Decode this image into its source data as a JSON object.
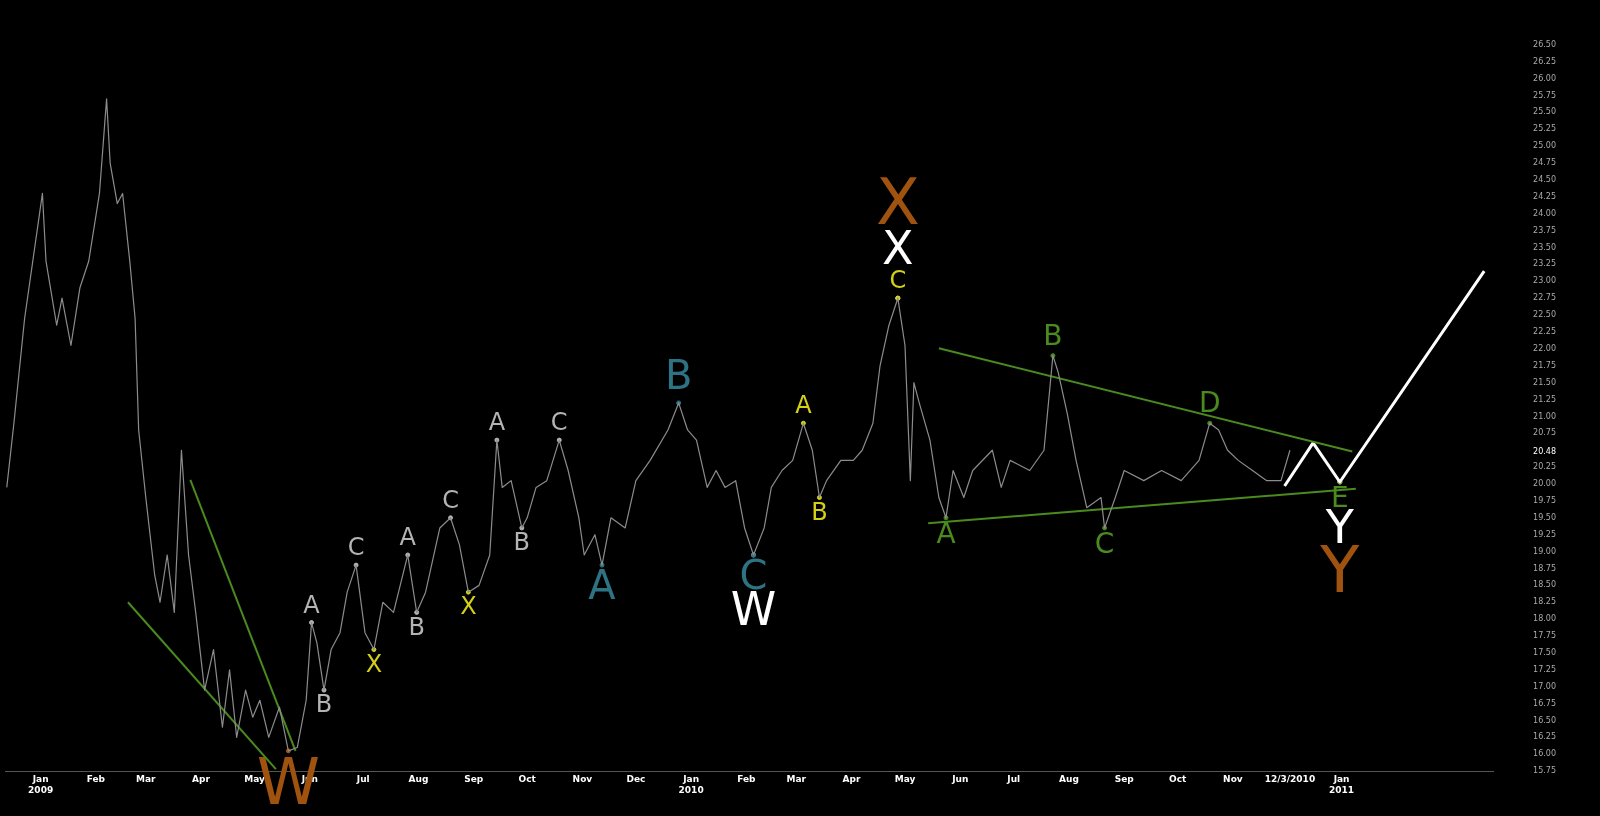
{
  "chart_data": {
    "type": "line",
    "grid": false,
    "legend": false,
    "xlim": [
      "2008-12-12",
      "2011-03-27"
    ],
    "ylim": [
      15.75,
      26.5
    ],
    "xticks": [
      {
        "value": "2009-01",
        "label": "Jan 2009"
      },
      {
        "value": "2009-02",
        "label": "Feb"
      },
      {
        "value": "2009-03",
        "label": "Mar"
      },
      {
        "value": "2009-04",
        "label": "Apr"
      },
      {
        "value": "2009-05",
        "label": "May"
      },
      {
        "value": "2009-06",
        "label": "Jun"
      },
      {
        "value": "2009-07",
        "label": "Jul"
      },
      {
        "value": "2009-08",
        "label": "Aug"
      },
      {
        "value": "2009-09",
        "label": "Sep"
      },
      {
        "value": "2009-10",
        "label": "Oct"
      },
      {
        "value": "2009-11",
        "label": "Nov"
      },
      {
        "value": "2009-12",
        "label": "Dec"
      },
      {
        "value": "2010-01",
        "label": "Jan 2010"
      },
      {
        "value": "2010-02",
        "label": "Feb"
      },
      {
        "value": "2010-03",
        "label": "Mar"
      },
      {
        "value": "2010-04",
        "label": "Apr"
      },
      {
        "value": "2010-05",
        "label": "May"
      },
      {
        "value": "2010-06",
        "label": "Jun"
      },
      {
        "value": "2010-07",
        "label": "Jul"
      },
      {
        "value": "2010-08",
        "label": "Aug"
      },
      {
        "value": "2010-09",
        "label": "Sep"
      },
      {
        "value": "2010-10",
        "label": "Oct"
      },
      {
        "value": "2010-11",
        "label": "Nov"
      },
      {
        "value": "2010-12-03",
        "label": "12/3/2010"
      },
      {
        "value": "2011-01",
        "label": "Jan 2011"
      }
    ],
    "yticks": [
      {
        "value": 15.75,
        "label": "15.75"
      },
      {
        "value": 16,
        "label": "16.00"
      },
      {
        "value": 16.25,
        "label": "16.25"
      },
      {
        "value": 16.5,
        "label": "16.50"
      },
      {
        "value": 16.75,
        "label": "16.75"
      },
      {
        "value": 17,
        "label": "17.00"
      },
      {
        "value": 17.25,
        "label": "17.25"
      },
      {
        "value": 17.5,
        "label": "17.50"
      },
      {
        "value": 17.75,
        "label": "17.75"
      },
      {
        "value": 18,
        "label": "18.00"
      },
      {
        "value": 18.25,
        "label": "18.25"
      },
      {
        "value": 18.5,
        "label": "18.50"
      },
      {
        "value": 18.75,
        "label": "18.75"
      },
      {
        "value": 19,
        "label": "19.00"
      },
      {
        "value": 19.25,
        "label": "19.25"
      },
      {
        "value": 19.5,
        "label": "19.50"
      },
      {
        "value": 19.75,
        "label": "19.75"
      },
      {
        "value": 20,
        "label": "20.00"
      },
      {
        "value": 20.25,
        "label": "20.25"
      },
      {
        "value": 20.48,
        "label": "20.48"
      },
      {
        "value": 20.75,
        "label": "20.75"
      },
      {
        "value": 21,
        "label": "21.00"
      },
      {
        "value": 21.25,
        "label": "21.25"
      },
      {
        "value": 21.5,
        "label": "21.50"
      },
      {
        "value": 21.75,
        "label": "21.75"
      },
      {
        "value": 22,
        "label": "22.00"
      },
      {
        "value": 22.25,
        "label": "22.25"
      },
      {
        "value": 22.5,
        "label": "22.50"
      },
      {
        "value": 22.75,
        "label": "22.75"
      },
      {
        "value": 23,
        "label": "23.00"
      },
      {
        "value": 23.25,
        "label": "23.25"
      },
      {
        "value": 23.5,
        "label": "23.50"
      },
      {
        "value": 23.75,
        "label": "23.75"
      },
      {
        "value": 24,
        "label": "24.00"
      },
      {
        "value": 24.25,
        "label": "24.25"
      },
      {
        "value": 24.5,
        "label": "24.50"
      },
      {
        "value": 24.75,
        "label": "24.75"
      },
      {
        "value": 25,
        "label": "25.00"
      },
      {
        "value": 25.25,
        "label": "25.25"
      },
      {
        "value": 25.5,
        "label": "25.50"
      },
      {
        "value": 25.75,
        "label": "25.75"
      },
      {
        "value": 26,
        "label": "26.00"
      },
      {
        "value": 26.25,
        "label": "26.25"
      },
      {
        "value": 26.5,
        "label": "26.50"
      }
    ],
    "series": [
      {
        "color": "#8c8c8c",
        "x": [
          "2008-12-13",
          "2008-12-17",
          "2008-12-23",
          "2009-01-02",
          "2009-01-04",
          "2009-01-10",
          "2009-01-13",
          "2009-01-18",
          "2009-01-23",
          "2009-01-28",
          "2009-02-03",
          "2009-02-07",
          "2009-02-09",
          "2009-02-13",
          "2009-02-16",
          "2009-02-20",
          "2009-02-23",
          "2009-02-25",
          "2009-03-01",
          "2009-03-06",
          "2009-03-09",
          "2009-03-13",
          "2009-03-17",
          "2009-03-21",
          "2009-03-25",
          "2009-03-29",
          "2009-04-03",
          "2009-04-08",
          "2009-04-13",
          "2009-04-17",
          "2009-04-21",
          "2009-04-26",
          "2009-04-30",
          "2009-05-04",
          "2009-05-09",
          "2009-05-15",
          "2009-05-20",
          "2009-05-25",
          "2009-05-30",
          "2009-06-02",
          "2009-06-05",
          "2009-06-09",
          "2009-06-13",
          "2009-06-18",
          "2009-06-22",
          "2009-06-27",
          "2009-07-02",
          "2009-07-07",
          "2009-07-12",
          "2009-07-18",
          "2009-07-26",
          "2009-07-31",
          "2009-08-05",
          "2009-08-13",
          "2009-08-19",
          "2009-08-24",
          "2009-08-29",
          "2009-09-04",
          "2009-09-10",
          "2009-09-14",
          "2009-09-17",
          "2009-09-22",
          "2009-09-28",
          "2009-10-01",
          "2009-10-06",
          "2009-10-12",
          "2009-10-19",
          "2009-10-24",
          "2009-10-30",
          "2009-11-02",
          "2009-11-08",
          "2009-11-12",
          "2009-11-17",
          "2009-11-25",
          "2009-12-01",
          "2009-12-09",
          "2009-12-19",
          "2009-12-25",
          "2009-12-30",
          "2010-01-04",
          "2010-01-10",
          "2010-01-15",
          "2010-01-20",
          "2010-01-26",
          "2010-01-31",
          "2010-02-05",
          "2010-02-11",
          "2010-02-15",
          "2010-02-21",
          "2010-02-27",
          "2010-03-05",
          "2010-03-10",
          "2010-03-14",
          "2010-03-18",
          "2010-03-26",
          "2010-04-02",
          "2010-04-07",
          "2010-04-13",
          "2010-04-17",
          "2010-04-22",
          "2010-04-27",
          "2010-05-01",
          "2010-05-04",
          "2010-05-06",
          "2010-05-09",
          "2010-05-15",
          "2010-05-20",
          "2010-05-24",
          "2010-05-28",
          "2010-06-03",
          "2010-06-08",
          "2010-06-19",
          "2010-06-24",
          "2010-06-29",
          "2010-07-10",
          "2010-07-18",
          "2010-07-23",
          "2010-07-26",
          "2010-07-31",
          "2010-08-05",
          "2010-08-11",
          "2010-08-19",
          "2010-08-21",
          "2010-08-27",
          "2010-09-01",
          "2010-09-12",
          "2010-09-22",
          "2010-10-03",
          "2010-10-13",
          "2010-10-19",
          "2010-10-24",
          "2010-10-29",
          "2010-11-04",
          "2010-11-12",
          "2010-11-20",
          "2010-11-28",
          "2010-12-03"
        ],
        "values": [
          19.95,
          20.9,
          22.45,
          24.3,
          23.3,
          22.35,
          22.75,
          22.05,
          22.9,
          23.3,
          24.3,
          25.7,
          24.75,
          24.15,
          24.3,
          23.3,
          22.45,
          20.8,
          19.8,
          18.65,
          18.25,
          18.95,
          18.1,
          20.5,
          18.95,
          18.1,
          16.95,
          17.55,
          16.4,
          17.25,
          16.25,
          16.95,
          16.55,
          16.8,
          16.25,
          16.7,
          16.05,
          16.1,
          16.8,
          17.95,
          17.65,
          16.95,
          17.55,
          17.8,
          18.4,
          18.8,
          17.8,
          17.55,
          18.25,
          18.1,
          18.95,
          18.1,
          18.4,
          19.35,
          19.5,
          19.1,
          18.4,
          18.5,
          18.95,
          20.65,
          19.95,
          20.05,
          19.35,
          19.5,
          19.95,
          20.05,
          20.65,
          20.2,
          19.5,
          18.95,
          19.25,
          18.8,
          19.5,
          19.35,
          20.05,
          20.35,
          20.8,
          21.2,
          20.8,
          20.65,
          19.95,
          20.2,
          19.95,
          20.05,
          19.35,
          18.95,
          19.35,
          19.95,
          20.2,
          20.35,
          20.9,
          20.5,
          19.8,
          20.05,
          20.35,
          20.35,
          20.5,
          20.9,
          21.75,
          22.35,
          22.75,
          22.05,
          20.05,
          21.5,
          21.2,
          20.65,
          19.8,
          19.5,
          20.2,
          19.8,
          20.2,
          20.5,
          19.95,
          20.35,
          20.2,
          20.5,
          21.9,
          21.65,
          21.05,
          20.35,
          19.65,
          19.8,
          19.35,
          19.8,
          20.2,
          20.05,
          20.2,
          20.05,
          20.35,
          20.9,
          20.8,
          20.5,
          20.35,
          20.2,
          20.05,
          20.05,
          20.5
        ]
      },
      {
        "color": "#4a8a1e",
        "x": [
          "2009-02-19",
          "2009-05-13"
        ],
        "values": [
          18.25,
          15.78
        ]
      },
      {
        "color": "#4a8a1e",
        "x": [
          "2009-03-26",
          "2009-05-24"
        ],
        "values": [
          20.06,
          16.05
        ]
      },
      {
        "color": "#4a8a1e",
        "x": [
          "2010-05-20",
          "2011-01-07"
        ],
        "values": [
          22.01,
          20.48
        ]
      },
      {
        "color": "#4a8a1e",
        "x": [
          "2010-05-14",
          "2011-01-09"
        ],
        "values": [
          19.42,
          19.93
        ]
      },
      {
        "color": "#ffffff",
        "x": [
          "2010-11-30",
          "2010-12-16",
          "2010-12-31",
          "2011-03-22"
        ],
        "values": [
          19.97,
          20.61,
          20.03,
          23.15
        ]
      },
      {
        "type": "scatter",
        "color": "#b4b4b4",
        "x": [
          "2009-06-02",
          "2009-06-09",
          "2009-06-27",
          "2009-07-26",
          "2009-07-31",
          "2009-08-19",
          "2009-09-14",
          "2009-09-28",
          "2009-10-19"
        ],
        "values": [
          17.95,
          16.95,
          18.8,
          18.95,
          18.1,
          19.5,
          20.65,
          19.35,
          20.65
        ],
        "value_labels": [
          "A",
          "B",
          "C",
          "A",
          "B",
          "C",
          "A",
          "B",
          "C"
        ]
      },
      {
        "type": "scatter",
        "color": "#d4d017",
        "x": [
          "2009-07-07",
          "2009-08-29",
          "2010-03-05",
          "2010-03-14",
          "2010-04-27"
        ],
        "values": [
          17.55,
          18.4,
          20.9,
          19.8,
          22.75
        ],
        "value_labels": [
          "X",
          "X",
          "A",
          "B",
          "C"
        ]
      },
      {
        "type": "scatter",
        "color": "#2e7384",
        "x": [
          "2009-11-12",
          "2009-12-25",
          "2010-02-05"
        ],
        "values": [
          18.8,
          21.2,
          18.95
        ],
        "value_labels": [
          "A",
          "B",
          "C"
        ]
      },
      {
        "type": "scatter",
        "color": "#4a8a1e",
        "x": [
          "2010-05-24",
          "2010-07-23",
          "2010-08-21",
          "2010-10-19",
          "2010-12-31"
        ],
        "values": [
          19.5,
          21.9,
          19.35,
          20.9,
          20.03
        ],
        "value_labels": [
          "A",
          "B",
          "C",
          "D",
          "E"
        ]
      },
      {
        "type": "scatter",
        "color": "#ffffff",
        "x": [
          "2010-02-05",
          "2010-04-27",
          "2010-12-31"
        ],
        "values": [
          18.95,
          22.75,
          20.03
        ],
        "value_labels": [
          "W",
          "X",
          "Y"
        ]
      },
      {
        "type": "scatter",
        "color": "#a0520f",
        "x": [
          "2009-05-20",
          "2010-04-27",
          "2010-12-31"
        ],
        "values": [
          16.05,
          22.75,
          20.03
        ],
        "value_labels": [
          "W",
          "X",
          "Y"
        ]
      }
    ]
  }
}
